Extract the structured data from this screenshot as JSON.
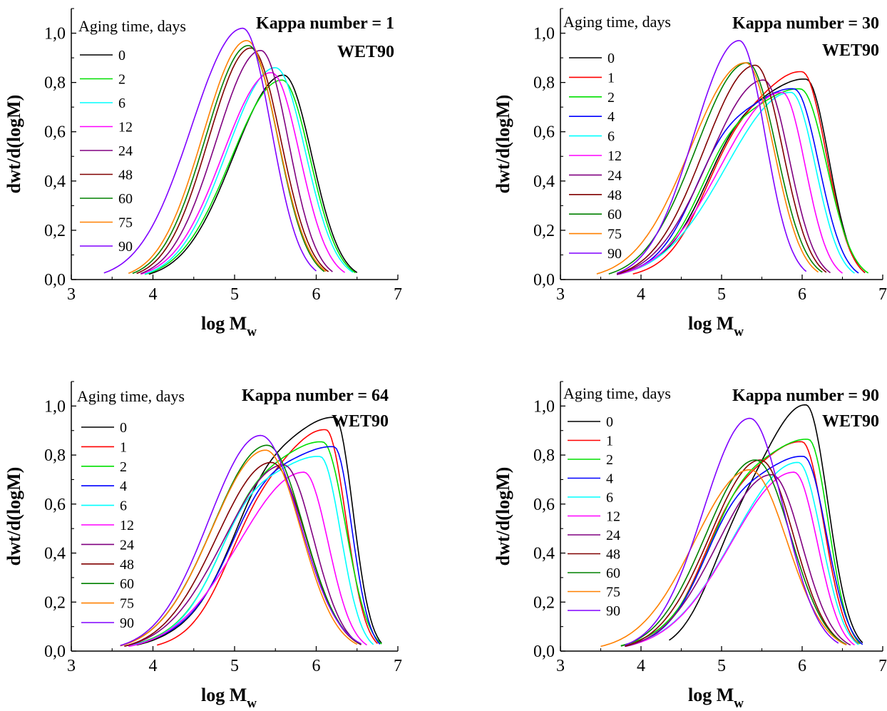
{
  "colors": {
    "0": "#000000",
    "1": "#ff0000",
    "2": "#00e000",
    "4": "#0000ff",
    "6": "#00ffff",
    "12": "#ff00ff",
    "24": "#800080",
    "48": "#800000",
    "60": "#008000",
    "75": "#ff8000",
    "90": "#8000ff"
  },
  "chart_data": [
    {
      "type": "line",
      "title": "Kappa number = 1",
      "subtitle": "WET90",
      "legend_title": "Aging time, days",
      "xlabel": "log M",
      "xlabel_sub": "w",
      "ylabel": "dwt/d(logM)",
      "xlim": [
        3,
        7
      ],
      "ylim": [
        0,
        1.1
      ],
      "xticks": [
        3,
        4,
        5,
        6,
        7
      ],
      "xtick_labels": [
        "3",
        "4",
        "5",
        "6",
        "7"
      ],
      "yticks": [
        0,
        0.2,
        0.4,
        0.6,
        0.8,
        1.0
      ],
      "ytick_labels": [
        "0,0",
        "0,2",
        "0,4",
        "0,6",
        "0,8",
        "1,0"
      ],
      "series": [
        {
          "name": "0",
          "peak_x": 5.6,
          "peak_y": 0.83,
          "x_start": 3.95,
          "x_end": 6.5
        },
        {
          "name": "2",
          "peak_x": 5.58,
          "peak_y": 0.81,
          "x_start": 3.9,
          "x_end": 6.48
        },
        {
          "name": "6",
          "peak_x": 5.5,
          "peak_y": 0.86,
          "x_start": 3.9,
          "x_end": 6.45
        },
        {
          "name": "12",
          "peak_x": 5.45,
          "peak_y": 0.84,
          "x_start": 3.85,
          "x_end": 6.35
        },
        {
          "name": "24",
          "peak_x": 5.32,
          "peak_y": 0.93,
          "x_start": 3.85,
          "x_end": 6.2
        },
        {
          "name": "48",
          "peak_x": 5.2,
          "peak_y": 0.94,
          "x_start": 3.8,
          "x_end": 6.15
        },
        {
          "name": "60",
          "peak_x": 5.17,
          "peak_y": 0.95,
          "x_start": 3.75,
          "x_end": 6.1
        },
        {
          "name": "75",
          "peak_x": 5.15,
          "peak_y": 0.97,
          "x_start": 3.7,
          "x_end": 6.12
        },
        {
          "name": "90",
          "peak_x": 5.1,
          "peak_y": 1.02,
          "x_start": 3.4,
          "x_end": 6.0
        }
      ]
    },
    {
      "type": "line",
      "title": "Kappa number = 30",
      "subtitle": "WET90",
      "legend_title": "Aging time, days",
      "xlabel": "log M",
      "xlabel_sub": "w",
      "ylabel": "dwt/d(logM)",
      "xlim": [
        3,
        7
      ],
      "ylim": [
        0,
        1.1
      ],
      "xticks": [
        3,
        4,
        5,
        6,
        7
      ],
      "xtick_labels": [
        "3",
        "4",
        "5",
        "6",
        "7"
      ],
      "yticks": [
        0,
        0.2,
        0.4,
        0.6,
        0.8,
        1.0
      ],
      "ytick_labels": [
        "0,0",
        "0,2",
        "0,4",
        "0,6",
        "0,8",
        "1,0"
      ],
      "series": [
        {
          "name": "0",
          "peak_x": 6.05,
          "peak_y": 0.81,
          "x_start": 3.7,
          "x_end": 6.78,
          "shoulder": 0.25
        },
        {
          "name": "1",
          "peak_x": 6.0,
          "peak_y": 0.84,
          "x_start": 3.9,
          "x_end": 6.78,
          "shoulder": 0.26
        },
        {
          "name": "2",
          "peak_x": 5.98,
          "peak_y": 0.77,
          "x_start": 3.7,
          "x_end": 6.82,
          "shoulder": 0.27
        },
        {
          "name": "4",
          "peak_x": 5.9,
          "peak_y": 0.77,
          "x_start": 3.7,
          "x_end": 6.7,
          "shoulder": 0.3
        },
        {
          "name": "6",
          "peak_x": 5.86,
          "peak_y": 0.76,
          "x_start": 3.7,
          "x_end": 6.65
        },
        {
          "name": "12",
          "peak_x": 5.75,
          "peak_y": 0.76,
          "x_start": 3.7,
          "x_end": 6.5
        },
        {
          "name": "24",
          "peak_x": 5.52,
          "peak_y": 0.81,
          "x_start": 3.7,
          "x_end": 6.35
        },
        {
          "name": "48",
          "peak_x": 5.42,
          "peak_y": 0.87,
          "x_start": 3.7,
          "x_end": 6.3
        },
        {
          "name": "60",
          "peak_x": 5.32,
          "peak_y": 0.88,
          "x_start": 3.6,
          "x_end": 6.25
        },
        {
          "name": "75",
          "peak_x": 5.3,
          "peak_y": 0.88,
          "x_start": 3.45,
          "x_end": 6.2
        },
        {
          "name": "90",
          "peak_x": 5.22,
          "peak_y": 0.97,
          "x_start": 3.7,
          "x_end": 6.05
        }
      ]
    },
    {
      "type": "line",
      "title": "Kappa number = 64",
      "subtitle": "WET90",
      "legend_title": "Aging time, days",
      "xlabel": "log M",
      "xlabel_sub": "w",
      "ylabel": "dwt/d(logM)",
      "xlim": [
        3,
        7
      ],
      "ylim": [
        0,
        1.1
      ],
      "xticks": [
        3,
        4,
        5,
        6,
        7
      ],
      "xtick_labels": [
        "3",
        "4",
        "5",
        "6",
        "7"
      ],
      "yticks": [
        0,
        0.2,
        0.4,
        0.6,
        0.8,
        1.0
      ],
      "ytick_labels": [
        "0,0",
        "0,2",
        "0,4",
        "0,6",
        "0,8",
        "1,0"
      ],
      "series": [
        {
          "name": "0",
          "peak_x": 6.23,
          "peak_y": 0.95,
          "x_start": 3.8,
          "x_end": 6.8,
          "shoulder": 0.26
        },
        {
          "name": "1",
          "peak_x": 6.12,
          "peak_y": 0.9,
          "x_start": 4.05,
          "x_end": 6.75,
          "shoulder": 0.25
        },
        {
          "name": "2",
          "peak_x": 6.08,
          "peak_y": 0.85,
          "x_start": 3.7,
          "x_end": 6.8,
          "shoulder": 0.26
        },
        {
          "name": "4",
          "peak_x": 6.22,
          "peak_y": 0.83,
          "x_start": 3.7,
          "x_end": 6.78,
          "shoulder": 0.27
        },
        {
          "name": "6",
          "peak_x": 6.05,
          "peak_y": 0.79,
          "x_start": 3.7,
          "x_end": 6.7,
          "shoulder": 0.28
        },
        {
          "name": "12",
          "peak_x": 5.85,
          "peak_y": 0.73,
          "x_start": 3.7,
          "x_end": 6.62
        },
        {
          "name": "24",
          "peak_x": 5.6,
          "peak_y": 0.76,
          "x_start": 3.65,
          "x_end": 6.55
        },
        {
          "name": "48",
          "peak_x": 5.45,
          "peak_y": 0.77,
          "x_start": 3.65,
          "x_end": 6.55
        },
        {
          "name": "60",
          "peak_x": 5.4,
          "peak_y": 0.84,
          "x_start": 3.6,
          "x_end": 6.55
        },
        {
          "name": "75",
          "peak_x": 5.38,
          "peak_y": 0.82,
          "x_start": 3.6,
          "x_end": 6.5
        },
        {
          "name": "90",
          "peak_x": 5.32,
          "peak_y": 0.88,
          "x_start": 3.6,
          "x_end": 6.55
        }
      ]
    },
    {
      "type": "line",
      "title": "Kappa number = 90",
      "subtitle": "WET90",
      "legend_title": "Aging time, days",
      "xlabel": "log M",
      "xlabel_sub": "w",
      "ylabel": "dwt/d(logM)",
      "xlim": [
        3,
        7
      ],
      "ylim": [
        0,
        1.1
      ],
      "xticks": [
        3,
        4,
        5,
        6,
        7
      ],
      "xtick_labels": [
        "3",
        "4",
        "5",
        "6",
        "7"
      ],
      "yticks": [
        0,
        0.2,
        0.4,
        0.6,
        0.8,
        1.0
      ],
      "ytick_labels": [
        "0,0",
        "0,2",
        "0,4",
        "0,6",
        "0,8",
        "1,0"
      ],
      "series": [
        {
          "name": "0",
          "peak_x": 6.05,
          "peak_y": 1.0,
          "x_start": 4.35,
          "x_end": 6.75,
          "shoulder": 0.33
        },
        {
          "name": "1",
          "peak_x": 6.0,
          "peak_y": 0.85,
          "x_start": 3.85,
          "x_end": 6.7,
          "shoulder": 0.3
        },
        {
          "name": "2",
          "peak_x": 6.08,
          "peak_y": 0.86,
          "x_start": 3.75,
          "x_end": 6.72,
          "shoulder": 0.29
        },
        {
          "name": "4",
          "peak_x": 6.02,
          "peak_y": 0.79,
          "x_start": 3.8,
          "x_end": 6.75,
          "shoulder": 0.3
        },
        {
          "name": "6",
          "peak_x": 5.95,
          "peak_y": 0.77,
          "x_start": 3.8,
          "x_end": 6.7
        },
        {
          "name": "12",
          "peak_x": 5.9,
          "peak_y": 0.73,
          "x_start": 3.8,
          "x_end": 6.65
        },
        {
          "name": "24",
          "peak_x": 5.62,
          "peak_y": 0.72,
          "x_start": 3.8,
          "x_end": 6.6
        },
        {
          "name": "48",
          "peak_x": 5.48,
          "peak_y": 0.78,
          "x_start": 3.8,
          "x_end": 6.55
        },
        {
          "name": "60",
          "peak_x": 5.42,
          "peak_y": 0.78,
          "x_start": 3.75,
          "x_end": 6.55
        },
        {
          "name": "75",
          "peak_x": 5.35,
          "peak_y": 0.74,
          "x_start": 3.5,
          "x_end": 6.55
        },
        {
          "name": "90",
          "peak_x": 5.35,
          "peak_y": 0.95,
          "x_start": 3.8,
          "x_end": 6.45
        }
      ]
    }
  ]
}
